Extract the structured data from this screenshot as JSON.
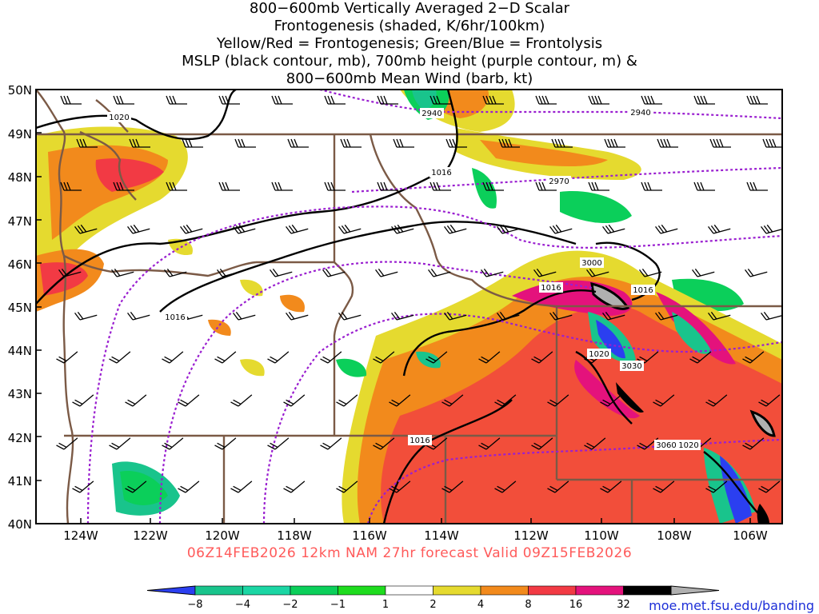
{
  "titles": {
    "line1": "800−600mb Vertically Averaged 2−D Scalar",
    "line2": "Frontogenesis (shaded, K/6hr/100km)",
    "line3": "Yellow/Red = Frontogenesis;  Green/Blue = Frontolysis",
    "line4": "MSLP (black contour, mb), 700mb height (purple contour, m) &",
    "line5": "800−600mb Mean Wind (barb, kt)"
  },
  "latitudes": [
    "50N",
    "49N",
    "48N",
    "47N",
    "46N",
    "45N",
    "44N",
    "43N",
    "42N",
    "41N",
    "40N"
  ],
  "longitudes": [
    "124W",
    "122W",
    "120W",
    "118W",
    "116W",
    "114W",
    "112W",
    "110W",
    "108W",
    "106W"
  ],
  "contour_labels": {
    "mslp": [
      "1020",
      "1016",
      "1016",
      "1016",
      "1016",
      "1020",
      "1016",
      "1020"
    ],
    "height": [
      "2940",
      "2940",
      "2970",
      "3000",
      "3030",
      "3060"
    ]
  },
  "footer": "06Z14FEB2026 12km NAM 27hr forecast Valid 09Z15FEB2026",
  "credit": "moe.met.fsu.edu/banding",
  "colorbar": {
    "labels": [
      "−8",
      "−4",
      "−2",
      "−1",
      "1",
      "2",
      "4",
      "8",
      "16",
      "32"
    ],
    "colors": [
      "#2b3ff0",
      "#19c48c",
      "#1bd6a4",
      "#0bcf5a",
      "#1edc1e",
      "#ffffff",
      "#e5da2f",
      "#f28a1c",
      "#f23a44",
      "#e4127c",
      "#000000",
      "#b0b0b0"
    ]
  },
  "colors": {
    "mslp": "#000000",
    "height": "#9a1fd0",
    "borders": "#7b5a46",
    "footer": "#ff5a5a",
    "credit": "#1d2fd8"
  }
}
